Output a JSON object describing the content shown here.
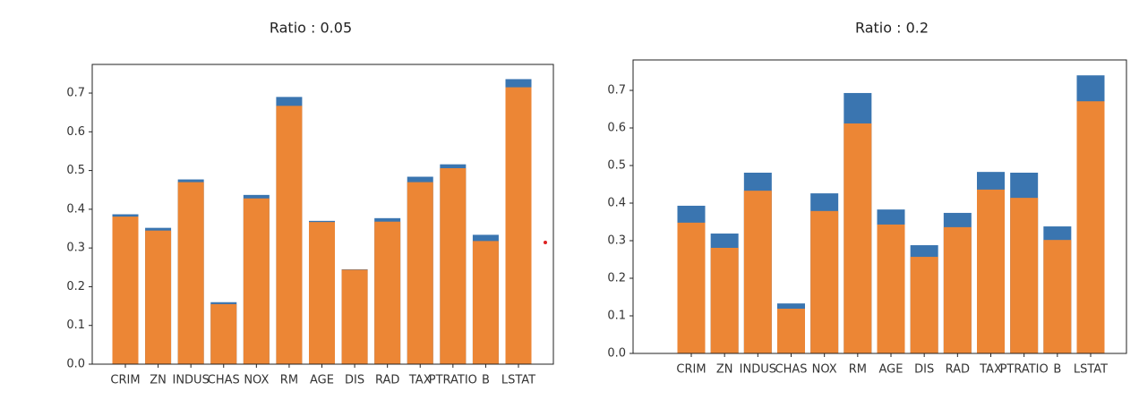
{
  "chart_data": [
    {
      "type": "bar",
      "title": "Ratio : 0.05",
      "categories": [
        "CRIM",
        "ZN",
        "INDUS",
        "CHAS",
        "NOX",
        "RM",
        "AGE",
        "DIS",
        "RAD",
        "TAX",
        "PTRATIO",
        "B",
        "LSTAT"
      ],
      "series": [
        {
          "color": "#3a75b0",
          "values": [
            0.387,
            0.352,
            0.477,
            0.16,
            0.437,
            0.69,
            0.37,
            0.245,
            0.377,
            0.484,
            0.516,
            0.334,
            0.736
          ]
        },
        {
          "color": "#ec8635",
          "values": [
            0.381,
            0.345,
            0.47,
            0.155,
            0.428,
            0.667,
            0.367,
            0.244,
            0.368,
            0.47,
            0.506,
            0.318,
            0.715
          ]
        }
      ],
      "ylim": [
        0,
        0.774
      ],
      "yticks": [
        {
          "value": 0,
          "label": "0.0"
        },
        0.1,
        0.2,
        0.3,
        0.4,
        0.5,
        0.6,
        0.7
      ]
    },
    {
      "type": "bar",
      "title": "Ratio : 0.2",
      "categories": [
        "CRIM",
        "ZN",
        "INDUS",
        "CHAS",
        "NOX",
        "RM",
        "AGE",
        "DIS",
        "RAD",
        "TAX",
        "PTRATIO",
        "B",
        "LSTAT"
      ],
      "series": [
        {
          "color": "#3a75b0",
          "values": [
            0.393,
            0.319,
            0.481,
            0.133,
            0.426,
            0.693,
            0.383,
            0.288,
            0.374,
            0.483,
            0.481,
            0.338,
            0.74
          ]
        },
        {
          "color": "#ec8635",
          "values": [
            0.348,
            0.281,
            0.433,
            0.119,
            0.379,
            0.612,
            0.343,
            0.257,
            0.336,
            0.436,
            0.414,
            0.302,
            0.671
          ]
        }
      ],
      "ylim": [
        0,
        0.781
      ],
      "yticks": [
        {
          "value": 0,
          "label": "0.0"
        },
        0.1,
        0.2,
        0.3,
        0.4,
        0.5,
        0.6,
        0.7
      ]
    }
  ]
}
